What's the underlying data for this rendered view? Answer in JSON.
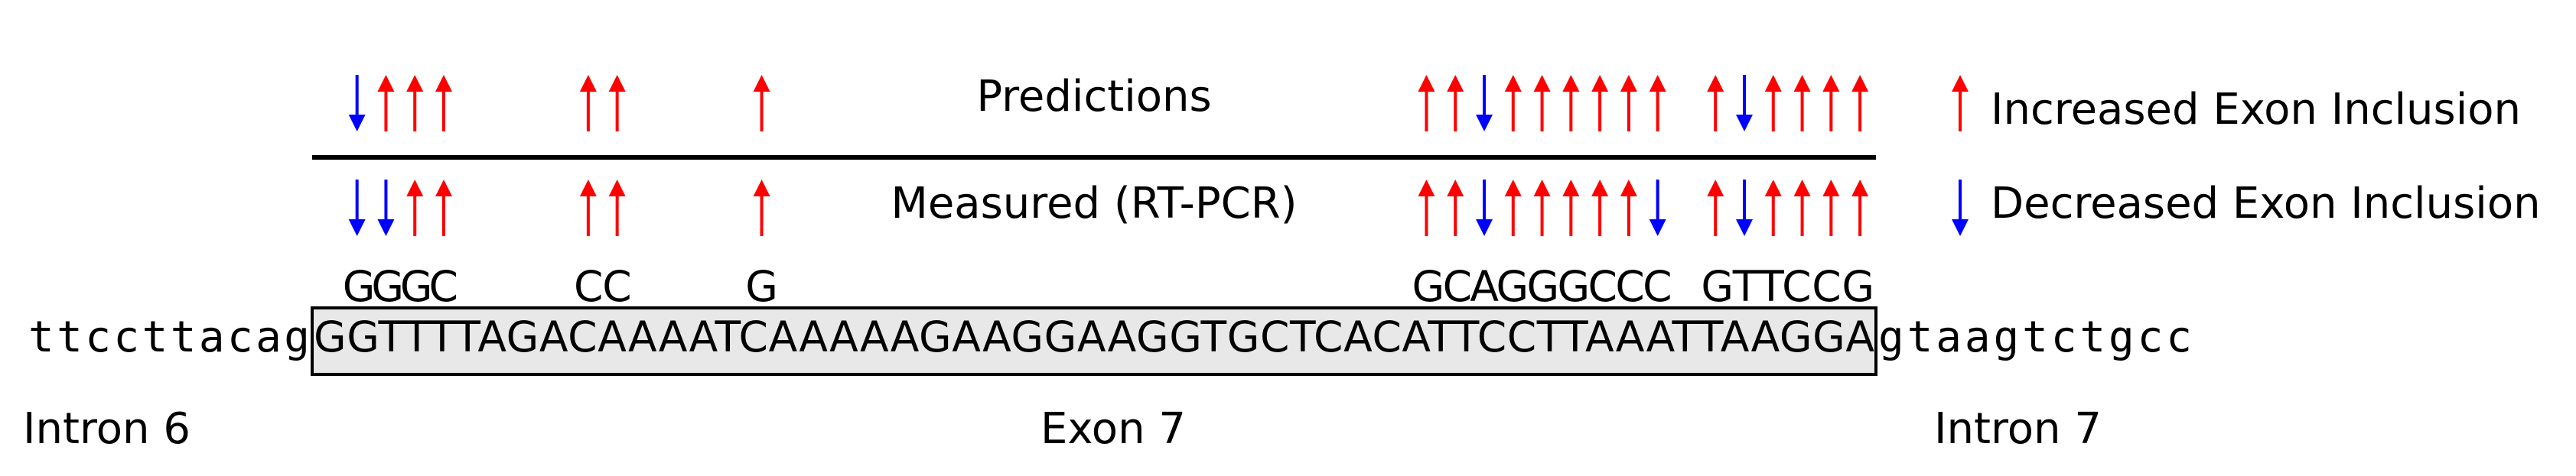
{
  "labels": {
    "predictions": "Predictions",
    "measured": "Measured (RT-PCR)",
    "intron_left": "Intron 6",
    "exon": "Exon 7",
    "intron_right": "Intron 7"
  },
  "legend": {
    "increased": "Increased Exon Inclusion",
    "decreased": "Decreased Exon Inclusion"
  },
  "sequence": {
    "intron_left": "ttccttacag",
    "exon": "GGTTTTAGACAAAATCAAAAAGAAGGAAGGTGCTCACATTCCTTAAATTAAGGA",
    "intron_right": "gtaagtctgcc"
  },
  "mutation_groups": [
    {
      "text": "GGGC",
      "start": 2,
      "end": 5
    },
    {
      "text": "CC",
      "start": 10,
      "end": 11
    },
    {
      "text": "G",
      "start": 16,
      "end": 16
    },
    {
      "text": "GCAGGGCCC",
      "start": 39,
      "end": 47
    },
    {
      "text": "GTTCCG",
      "start": 49,
      "end": 54
    }
  ],
  "predictions": [
    "down",
    "up",
    "up",
    "up",
    "up",
    "up",
    "up",
    "up",
    "up",
    "down",
    "up",
    "up",
    "up",
    "up",
    "up",
    "up",
    "up",
    "down",
    "up",
    "up",
    "up",
    "up"
  ],
  "measured": [
    "down",
    "down",
    "up",
    "up",
    "up",
    "up",
    "up",
    "up",
    "up",
    "down",
    "up",
    "up",
    "up",
    "up",
    "up",
    "down",
    "up",
    "down",
    "up",
    "up",
    "up",
    "up"
  ],
  "colors": {
    "up": "#ff0000",
    "down": "#0000ff",
    "exon_fill": "#e8e8e8"
  }
}
